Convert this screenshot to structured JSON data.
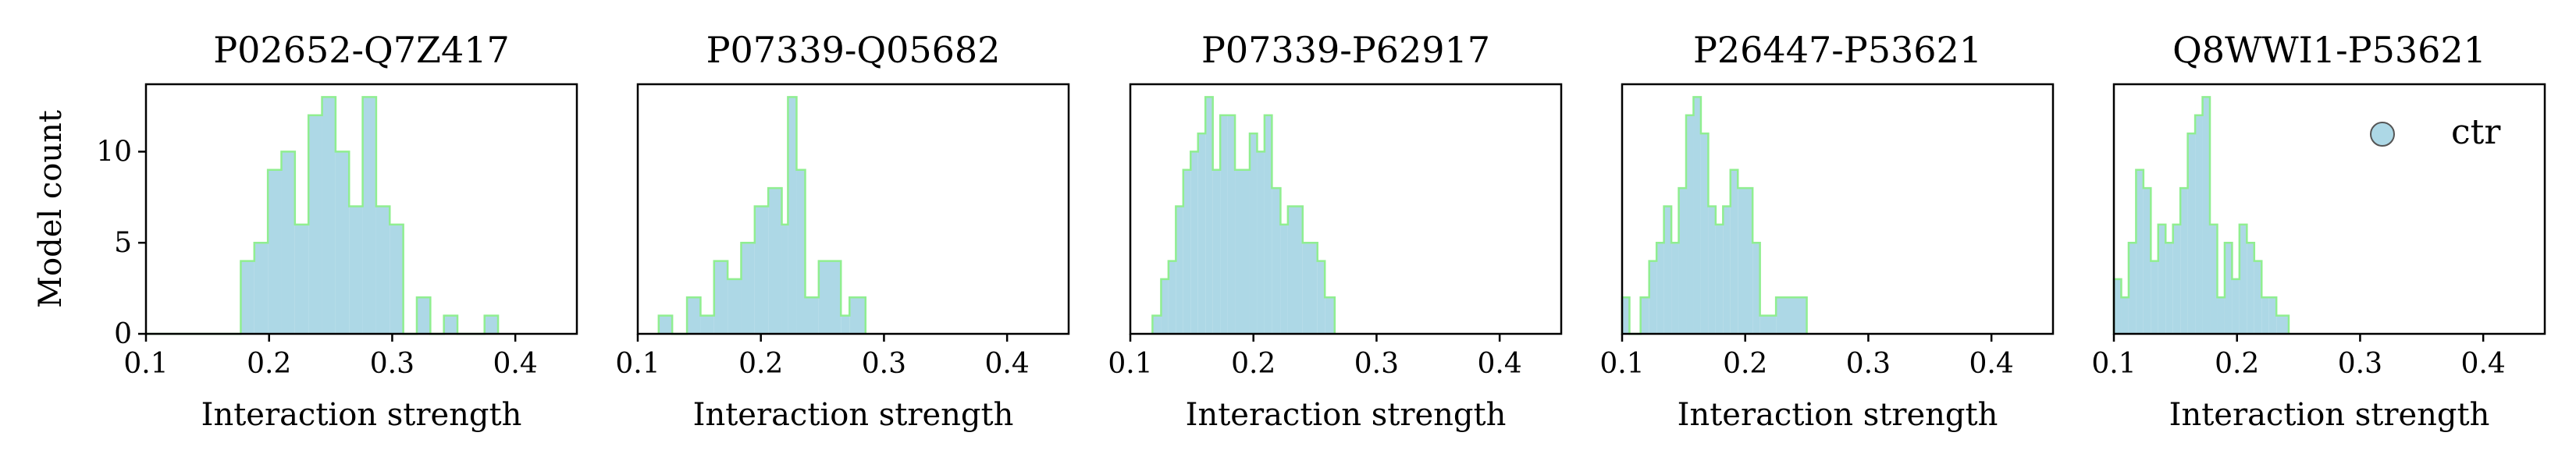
{
  "figure": {
    "ylabel": "Model count",
    "legend": {
      "label": "ctr",
      "placement": "upper-right of last panel"
    }
  },
  "colors": {
    "bar_fill": "#add8e6",
    "bar_edge": "#90ee90",
    "axes": "#000000"
  },
  "chart_data": [
    {
      "type": "bar",
      "title": "P02652-Q7Z417",
      "xlabel": "Interaction strength",
      "ylabel": "Model count",
      "xlim": [
        0.1,
        0.45
      ],
      "ylim": [
        0,
        13.7
      ],
      "xticks": [
        "0.1",
        "0.2",
        "0.3",
        "0.4"
      ],
      "yticks": [
        "0",
        "5",
        "10"
      ],
      "bins": [
        {
          "x0": 0.1,
          "x1": 0.177,
          "count": 0
        },
        {
          "x0": 0.177,
          "x1": 0.188,
          "count": 4
        },
        {
          "x0": 0.188,
          "x1": 0.199,
          "count": 5
        },
        {
          "x0": 0.199,
          "x1": 0.21,
          "count": 9
        },
        {
          "x0": 0.21,
          "x1": 0.221,
          "count": 10
        },
        {
          "x0": 0.221,
          "x1": 0.232,
          "count": 6
        },
        {
          "x0": 0.232,
          "x1": 0.243,
          "count": 12
        },
        {
          "x0": 0.243,
          "x1": 0.254,
          "count": 13
        },
        {
          "x0": 0.254,
          "x1": 0.265,
          "count": 10
        },
        {
          "x0": 0.265,
          "x1": 0.276,
          "count": 7
        },
        {
          "x0": 0.276,
          "x1": 0.287,
          "count": 13
        },
        {
          "x0": 0.287,
          "x1": 0.298,
          "count": 7
        },
        {
          "x0": 0.298,
          "x1": 0.309,
          "count": 6
        },
        {
          "x0": 0.309,
          "x1": 0.32,
          "count": 0
        },
        {
          "x0": 0.32,
          "x1": 0.331,
          "count": 2
        },
        {
          "x0": 0.331,
          "x1": 0.342,
          "count": 0
        },
        {
          "x0": 0.342,
          "x1": 0.353,
          "count": 1
        },
        {
          "x0": 0.353,
          "x1": 0.375,
          "count": 0
        },
        {
          "x0": 0.375,
          "x1": 0.386,
          "count": 1
        }
      ]
    },
    {
      "type": "bar",
      "title": "P07339-Q05682",
      "xlabel": "Interaction strength",
      "ylabel": "",
      "xlim": [
        0.1,
        0.45
      ],
      "ylim": [
        0,
        13.7
      ],
      "xticks": [
        "0.1",
        "0.2",
        "0.3",
        "0.4"
      ],
      "yticks": [],
      "bins": [
        {
          "x0": 0.117,
          "x1": 0.128,
          "count": 1
        },
        {
          "x0": 0.128,
          "x1": 0.14,
          "count": 0
        },
        {
          "x0": 0.14,
          "x1": 0.151,
          "count": 2
        },
        {
          "x0": 0.151,
          "x1": 0.162,
          "count": 1
        },
        {
          "x0": 0.162,
          "x1": 0.173,
          "count": 4
        },
        {
          "x0": 0.173,
          "x1": 0.184,
          "count": 3
        },
        {
          "x0": 0.184,
          "x1": 0.195,
          "count": 5
        },
        {
          "x0": 0.195,
          "x1": 0.206,
          "count": 7
        },
        {
          "x0": 0.206,
          "x1": 0.217,
          "count": 8
        },
        {
          "x0": 0.217,
          "x1": 0.222,
          "count": 6
        },
        {
          "x0": 0.222,
          "x1": 0.229,
          "count": 13
        },
        {
          "x0": 0.229,
          "x1": 0.236,
          "count": 9
        },
        {
          "x0": 0.236,
          "x1": 0.247,
          "count": 2
        },
        {
          "x0": 0.247,
          "x1": 0.265,
          "count": 4
        },
        {
          "x0": 0.265,
          "x1": 0.272,
          "count": 1
        },
        {
          "x0": 0.272,
          "x1": 0.285,
          "count": 2
        }
      ]
    },
    {
      "type": "bar",
      "title": "P07339-P62917",
      "xlabel": "Interaction strength",
      "ylabel": "",
      "xlim": [
        0.1,
        0.45
      ],
      "ylim": [
        0,
        13.7
      ],
      "xticks": [
        "0.1",
        "0.2",
        "0.3",
        "0.4"
      ],
      "yticks": [],
      "bins": [
        {
          "x0": 0.118,
          "x1": 0.125,
          "count": 1
        },
        {
          "x0": 0.125,
          "x1": 0.131,
          "count": 3
        },
        {
          "x0": 0.131,
          "x1": 0.137,
          "count": 4
        },
        {
          "x0": 0.137,
          "x1": 0.143,
          "count": 7
        },
        {
          "x0": 0.143,
          "x1": 0.149,
          "count": 9
        },
        {
          "x0": 0.149,
          "x1": 0.155,
          "count": 10
        },
        {
          "x0": 0.155,
          "x1": 0.161,
          "count": 11
        },
        {
          "x0": 0.161,
          "x1": 0.167,
          "count": 13
        },
        {
          "x0": 0.167,
          "x1": 0.173,
          "count": 9
        },
        {
          "x0": 0.173,
          "x1": 0.179,
          "count": 12
        },
        {
          "x0": 0.179,
          "x1": 0.185,
          "count": 12
        },
        {
          "x0": 0.185,
          "x1": 0.197,
          "count": 9
        },
        {
          "x0": 0.197,
          "x1": 0.203,
          "count": 11
        },
        {
          "x0": 0.203,
          "x1": 0.209,
          "count": 10
        },
        {
          "x0": 0.209,
          "x1": 0.215,
          "count": 12
        },
        {
          "x0": 0.215,
          "x1": 0.222,
          "count": 8
        },
        {
          "x0": 0.222,
          "x1": 0.228,
          "count": 6
        },
        {
          "x0": 0.228,
          "x1": 0.24,
          "count": 7
        },
        {
          "x0": 0.24,
          "x1": 0.252,
          "count": 5
        },
        {
          "x0": 0.252,
          "x1": 0.258,
          "count": 4
        },
        {
          "x0": 0.258,
          "x1": 0.266,
          "count": 2
        }
      ]
    },
    {
      "type": "bar",
      "title": "P26447-P53621",
      "xlabel": "Interaction strength",
      "ylabel": "",
      "xlim": [
        0.1,
        0.45
      ],
      "ylim": [
        0,
        13.7
      ],
      "xticks": [
        "0.1",
        "0.2",
        "0.3",
        "0.4"
      ],
      "yticks": [],
      "bins": [
        {
          "x0": 0.1,
          "x1": 0.106,
          "count": 2
        },
        {
          "x0": 0.106,
          "x1": 0.115,
          "count": 0
        },
        {
          "x0": 0.115,
          "x1": 0.122,
          "count": 2
        },
        {
          "x0": 0.122,
          "x1": 0.128,
          "count": 4
        },
        {
          "x0": 0.128,
          "x1": 0.134,
          "count": 5
        },
        {
          "x0": 0.134,
          "x1": 0.14,
          "count": 7
        },
        {
          "x0": 0.14,
          "x1": 0.146,
          "count": 5
        },
        {
          "x0": 0.146,
          "x1": 0.152,
          "count": 8
        },
        {
          "x0": 0.152,
          "x1": 0.158,
          "count": 12
        },
        {
          "x0": 0.158,
          "x1": 0.164,
          "count": 13
        },
        {
          "x0": 0.164,
          "x1": 0.17,
          "count": 11
        },
        {
          "x0": 0.17,
          "x1": 0.176,
          "count": 7
        },
        {
          "x0": 0.176,
          "x1": 0.182,
          "count": 6
        },
        {
          "x0": 0.182,
          "x1": 0.188,
          "count": 7
        },
        {
          "x0": 0.188,
          "x1": 0.194,
          "count": 9
        },
        {
          "x0": 0.194,
          "x1": 0.206,
          "count": 8
        },
        {
          "x0": 0.206,
          "x1": 0.212,
          "count": 5
        },
        {
          "x0": 0.212,
          "x1": 0.225,
          "count": 1
        },
        {
          "x0": 0.225,
          "x1": 0.25,
          "count": 2
        }
      ]
    },
    {
      "type": "bar",
      "title": "Q8WWI1-P53621",
      "xlabel": "Interaction strength",
      "ylabel": "",
      "xlim": [
        0.1,
        0.45
      ],
      "ylim": [
        0,
        13.7
      ],
      "xticks": [
        "0.1",
        "0.2",
        "0.3",
        "0.4"
      ],
      "yticks": [],
      "bins": [
        {
          "x0": 0.1,
          "x1": 0.106,
          "count": 3
        },
        {
          "x0": 0.106,
          "x1": 0.112,
          "count": 2
        },
        {
          "x0": 0.112,
          "x1": 0.118,
          "count": 5
        },
        {
          "x0": 0.118,
          "x1": 0.124,
          "count": 9
        },
        {
          "x0": 0.124,
          "x1": 0.13,
          "count": 8
        },
        {
          "x0": 0.13,
          "x1": 0.136,
          "count": 4
        },
        {
          "x0": 0.136,
          "x1": 0.142,
          "count": 6
        },
        {
          "x0": 0.142,
          "x1": 0.148,
          "count": 5
        },
        {
          "x0": 0.148,
          "x1": 0.154,
          "count": 6
        },
        {
          "x0": 0.154,
          "x1": 0.16,
          "count": 8
        },
        {
          "x0": 0.16,
          "x1": 0.166,
          "count": 11
        },
        {
          "x0": 0.166,
          "x1": 0.172,
          "count": 12
        },
        {
          "x0": 0.172,
          "x1": 0.178,
          "count": 13
        },
        {
          "x0": 0.178,
          "x1": 0.184,
          "count": 6
        },
        {
          "x0": 0.184,
          "x1": 0.19,
          "count": 2
        },
        {
          "x0": 0.19,
          "x1": 0.196,
          "count": 5
        },
        {
          "x0": 0.196,
          "x1": 0.202,
          "count": 3
        },
        {
          "x0": 0.202,
          "x1": 0.208,
          "count": 6
        },
        {
          "x0": 0.208,
          "x1": 0.214,
          "count": 5
        },
        {
          "x0": 0.214,
          "x1": 0.22,
          "count": 4
        },
        {
          "x0": 0.22,
          "x1": 0.226,
          "count": 2
        },
        {
          "x0": 0.226,
          "x1": 0.232,
          "count": 2
        },
        {
          "x0": 0.232,
          "x1": 0.242,
          "count": 1
        }
      ]
    }
  ]
}
